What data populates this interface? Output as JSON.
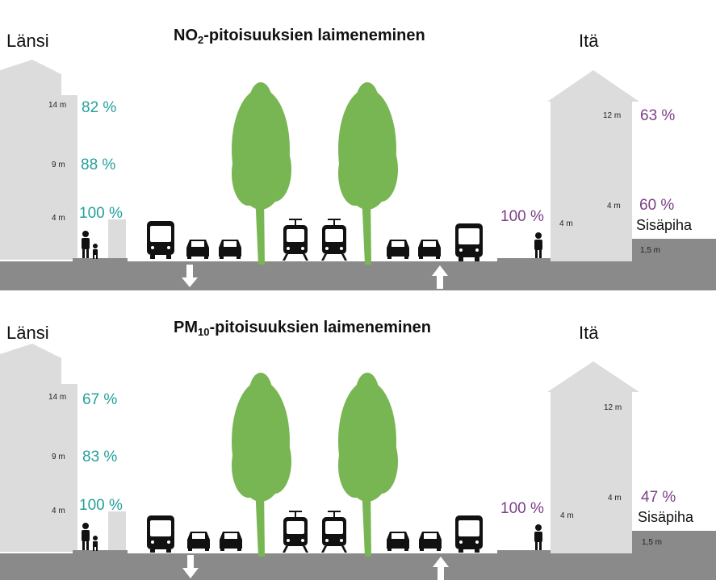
{
  "colors": {
    "west_pct": "#24a09b",
    "east_pct": "#7b3f86",
    "building": "#dcdcdc",
    "road": "#8a8a8a",
    "tree": "#78b653",
    "vehicle": "#111111"
  },
  "icons": [
    "pedestrian-icon",
    "child-icon",
    "bus-icon",
    "car-icon",
    "tram-icon",
    "tree-icon",
    "arrow-down-icon",
    "arrow-up-icon"
  ],
  "panels": [
    {
      "title_main": "NO",
      "title_sub": "2",
      "title_rest": "-pitoisuuksien laimeneminen",
      "west_label": "Länsi",
      "east_label": "Itä",
      "west_heights": [
        "14 m",
        "9 m",
        "4 m"
      ],
      "west_values": [
        "82 %",
        "88 %",
        "100 %"
      ],
      "east_heights": [
        "12 m",
        "4 m",
        "4 m"
      ],
      "east_values": [
        "63 %",
        "60 %"
      ],
      "east_street_value": "100 %",
      "courtyard_label": "Sisäpiha",
      "courtyard_height": "1,5 m"
    },
    {
      "title_main": "PM",
      "title_sub": "10",
      "title_rest": "-pitoisuuksien laimeneminen",
      "west_label": "Länsi",
      "east_label": "Itä",
      "west_heights": [
        "14 m",
        "9 m",
        "4 m"
      ],
      "west_values": [
        "67 %",
        "83 %",
        "100 %"
      ],
      "east_heights": [
        "12 m",
        "4 m",
        "4 m"
      ],
      "east_values": [
        "47 %"
      ],
      "east_street_value": "100 %",
      "courtyard_label": "Sisäpiha",
      "courtyard_height": "1,5 m"
    }
  ]
}
